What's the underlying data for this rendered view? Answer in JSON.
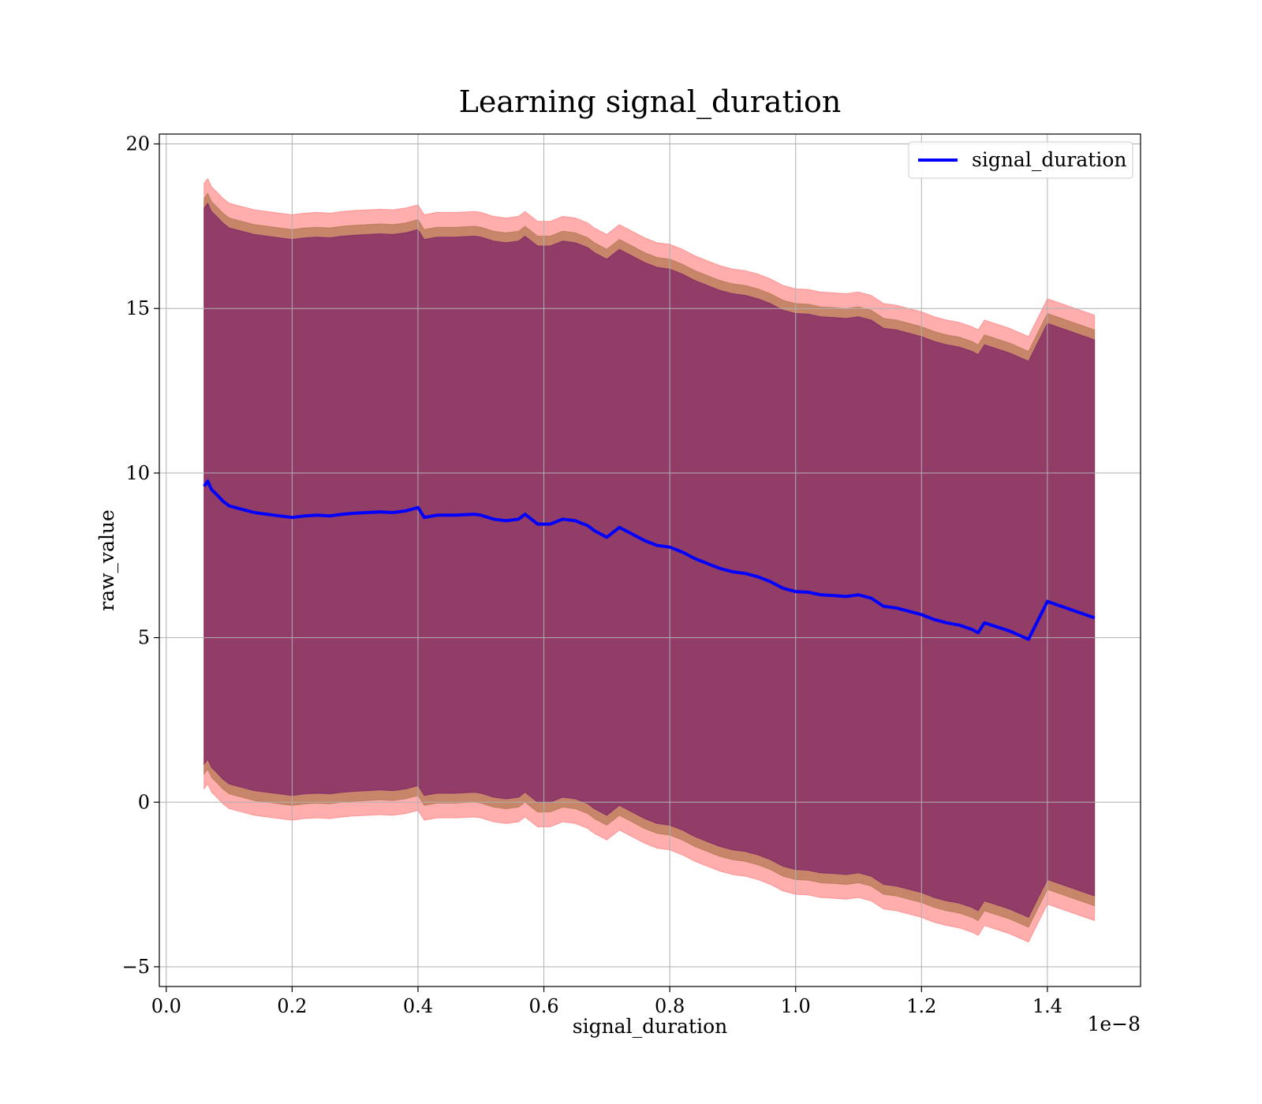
{
  "chart_data": {
    "type": "line",
    "title": "Learning signal_duration",
    "xlabel": "signal_duration",
    "ylabel": "raw_value",
    "x_offset_label": "1e−8",
    "xlim": [
      -0.011,
      1.548
    ],
    "ylim": [
      -5.6,
      20.3
    ],
    "x_ticks": [
      0.0,
      0.2,
      0.4,
      0.6,
      0.8,
      1.0,
      1.2,
      1.4
    ],
    "x_tick_labels": [
      "0.0",
      "0.2",
      "0.4",
      "0.6",
      "0.8",
      "1.0",
      "1.2",
      "1.4"
    ],
    "y_ticks": [
      -5,
      0,
      5,
      10,
      15,
      20
    ],
    "y_tick_labels": [
      "−5",
      "0",
      "5",
      "10",
      "15",
      "20"
    ],
    "grid": true,
    "legend_position": "top-right",
    "colors": {
      "line": "#0000ff",
      "band_outer": "#ff0000",
      "band_middle": "#996633",
      "band_inner": "#660066",
      "grid": "#b0b0b0"
    },
    "series": [
      {
        "name": "signal_duration",
        "points": [
          [
            0.06,
            9.6
          ],
          [
            0.066,
            9.75
          ],
          [
            0.072,
            9.5
          ],
          [
            0.08,
            9.35
          ],
          [
            0.09,
            9.15
          ],
          [
            0.1,
            9.0
          ],
          [
            0.12,
            8.9
          ],
          [
            0.14,
            8.8
          ],
          [
            0.16,
            8.75
          ],
          [
            0.18,
            8.7
          ],
          [
            0.2,
            8.65
          ],
          [
            0.22,
            8.7
          ],
          [
            0.24,
            8.72
          ],
          [
            0.26,
            8.7
          ],
          [
            0.28,
            8.75
          ],
          [
            0.3,
            8.78
          ],
          [
            0.32,
            8.8
          ],
          [
            0.34,
            8.82
          ],
          [
            0.36,
            8.8
          ],
          [
            0.38,
            8.85
          ],
          [
            0.4,
            8.95
          ],
          [
            0.41,
            8.65
          ],
          [
            0.43,
            8.72
          ],
          [
            0.46,
            8.72
          ],
          [
            0.49,
            8.75
          ],
          [
            0.5,
            8.72
          ],
          [
            0.52,
            8.6
          ],
          [
            0.54,
            8.55
          ],
          [
            0.56,
            8.6
          ],
          [
            0.57,
            8.75
          ],
          [
            0.59,
            8.45
          ],
          [
            0.61,
            8.45
          ],
          [
            0.63,
            8.6
          ],
          [
            0.65,
            8.55
          ],
          [
            0.67,
            8.4
          ],
          [
            0.68,
            8.25
          ],
          [
            0.69,
            8.15
          ],
          [
            0.7,
            8.05
          ],
          [
            0.72,
            8.35
          ],
          [
            0.74,
            8.15
          ],
          [
            0.76,
            7.95
          ],
          [
            0.78,
            7.8
          ],
          [
            0.8,
            7.75
          ],
          [
            0.82,
            7.6
          ],
          [
            0.84,
            7.4
          ],
          [
            0.86,
            7.25
          ],
          [
            0.88,
            7.1
          ],
          [
            0.9,
            7.0
          ],
          [
            0.92,
            6.95
          ],
          [
            0.94,
            6.85
          ],
          [
            0.96,
            6.7
          ],
          [
            0.98,
            6.5
          ],
          [
            1.0,
            6.4
          ],
          [
            1.02,
            6.38
          ],
          [
            1.04,
            6.3
          ],
          [
            1.06,
            6.28
          ],
          [
            1.08,
            6.25
          ],
          [
            1.1,
            6.3
          ],
          [
            1.12,
            6.2
          ],
          [
            1.14,
            5.95
          ],
          [
            1.16,
            5.9
          ],
          [
            1.18,
            5.8
          ],
          [
            1.2,
            5.7
          ],
          [
            1.22,
            5.55
          ],
          [
            1.24,
            5.45
          ],
          [
            1.26,
            5.38
          ],
          [
            1.28,
            5.25
          ],
          [
            1.29,
            5.15
          ],
          [
            1.3,
            5.45
          ],
          [
            1.34,
            5.2
          ],
          [
            1.37,
            4.95
          ],
          [
            1.4,
            6.1
          ],
          [
            1.475,
            5.6
          ]
        ]
      }
    ]
  }
}
